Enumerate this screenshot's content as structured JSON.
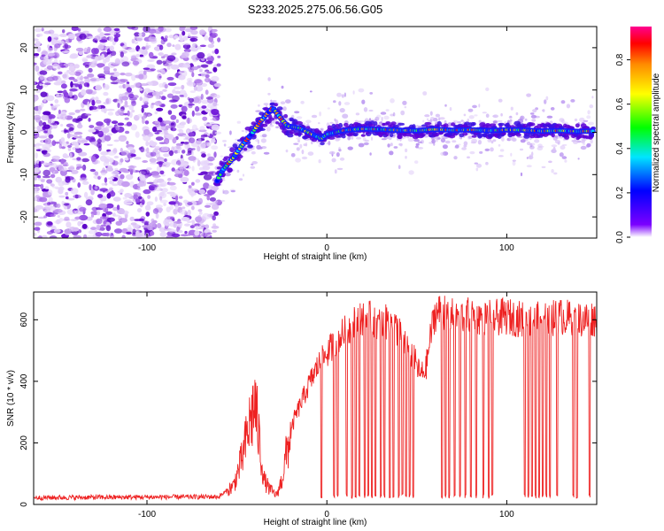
{
  "title": "S233.2025.275.06.56.G05",
  "colors": {
    "snr_line": "#ee2222",
    "axes": "#000000",
    "scatter_noise": "#8a2be2"
  },
  "chart_data": [
    {
      "type": "heatmap",
      "name": "spectrogram",
      "xlabel": "Height of straight line (km)",
      "ylabel": "Frequency (Hz)",
      "xlim": [
        -163,
        150
      ],
      "ylim": [
        -25,
        25
      ],
      "xticks": [
        -100,
        0,
        100
      ],
      "yticks": [
        -20,
        -10,
        0,
        10,
        20
      ],
      "grid": false,
      "colorbar": {
        "label": "Normalized spectral amplitude",
        "range": [
          0.0,
          0.95
        ],
        "ticks": [
          0.0,
          0.2,
          0.4,
          0.6,
          0.8
        ],
        "colormap": "rainbow"
      },
      "noise_region_x": [
        -163,
        -60
      ],
      "ridge": {
        "x": [
          -61,
          -58,
          -52,
          -47,
          -42,
          -37,
          -33,
          -30,
          -27,
          -22,
          -15,
          -8,
          -3,
          0,
          10,
          20,
          30,
          40,
          50,
          60,
          70,
          80,
          90,
          100,
          110,
          120,
          130,
          140,
          148
        ],
        "y": [
          -11.5,
          -9,
          -6,
          -3,
          -0.5,
          2.5,
          4.5,
          5.8,
          4,
          1.5,
          1,
          -0.5,
          -1.5,
          -0.5,
          0.5,
          0.8,
          0.7,
          0.5,
          0.4,
          0.7,
          0.5,
          0.6,
          0.4,
          0.6,
          0.5,
          0.3,
          0.4,
          0.2,
          0.3
        ]
      }
    },
    {
      "type": "line",
      "name": "snr",
      "xlabel": "Height of straight line (km)",
      "ylabel": "SNR (10 * v/v)",
      "xlim": [
        -163,
        150
      ],
      "ylim": [
        0,
        690
      ],
      "xticks": [
        -100,
        0,
        100
      ],
      "yticks": [
        0,
        200,
        400,
        600
      ],
      "grid": false,
      "envelope": {
        "x": [
          -163,
          -60,
          -52,
          -47,
          -43,
          -40,
          -37,
          -35,
          -32,
          -28,
          -25,
          -22,
          -18,
          -15,
          -10,
          -5,
          0,
          5,
          10,
          15,
          20,
          25,
          30,
          35,
          40,
          45,
          48,
          50,
          52,
          55,
          58,
          60,
          65,
          70,
          80,
          90,
          100,
          110,
          120,
          130,
          140,
          150
        ],
        "y": [
          22,
          25,
          60,
          150,
          260,
          330,
          180,
          80,
          50,
          30,
          80,
          180,
          280,
          320,
          390,
          450,
          490,
          530,
          560,
          590,
          610,
          600,
          580,
          600,
          560,
          510,
          480,
          450,
          420,
          440,
          560,
          620,
          630,
          610,
          615,
          605,
          610,
          600,
          600,
          610,
          600,
          605
        ]
      },
      "dropouts": [
        -3,
        4,
        6,
        11,
        14,
        16,
        18,
        21,
        23,
        25,
        27,
        30,
        32,
        35,
        37,
        40,
        42,
        44,
        46,
        48,
        64,
        66,
        68,
        71,
        74,
        77,
        80,
        83,
        87,
        90,
        92,
        110,
        112,
        114,
        116,
        118,
        120,
        122,
        124,
        128,
        137,
        139,
        146
      ]
    }
  ]
}
